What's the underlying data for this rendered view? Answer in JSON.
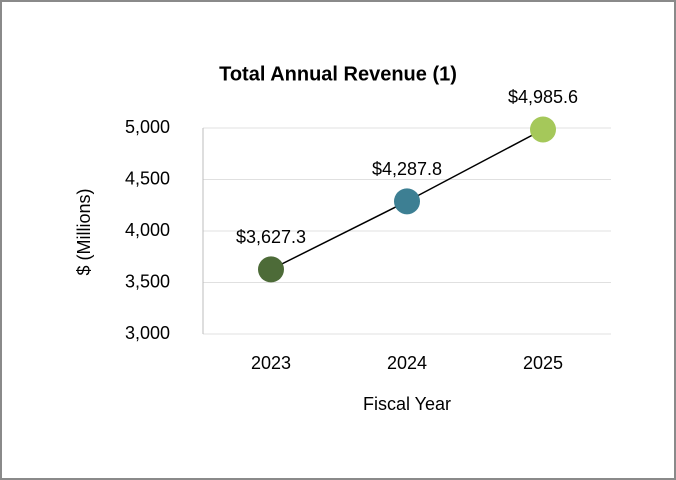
{
  "chart_data": {
    "type": "line",
    "title": "Total Annual Revenue (1)",
    "x_label": "Fiscal Year",
    "y_label": "$ (Millions)",
    "categories": [
      "2023",
      "2024",
      "2025"
    ],
    "values": [
      3627.3,
      4287.8,
      4985.6
    ],
    "value_labels": [
      "$3,627.3",
      "$4,287.8",
      "$4,985.6"
    ],
    "point_colors": [
      "#4d6b38",
      "#3d7f93",
      "#a5c85a"
    ],
    "line_color": "#000000",
    "ylim": [
      3000,
      5000
    ],
    "yticks": [
      {
        "value": 3000,
        "label": "3,000"
      },
      {
        "value": 3500,
        "label": "3,500"
      },
      {
        "value": 4000,
        "label": "4,000"
      },
      {
        "value": 4500,
        "label": "4,500"
      },
      {
        "value": 5000,
        "label": "5,000"
      }
    ],
    "grid": true
  }
}
